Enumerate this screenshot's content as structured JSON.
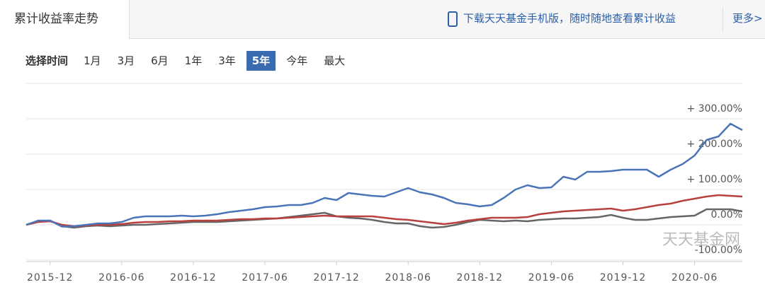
{
  "header": {
    "tab": "累计收益率走势",
    "download": "下载天天基金手机版，随时随地查看累计收益",
    "more": "更多>"
  },
  "selector": {
    "label": "选择时间",
    "options": [
      "1月",
      "3月",
      "6月",
      "1年",
      "3年",
      "5年",
      "今年",
      "最大"
    ],
    "selected": "5年"
  },
  "watermark": "天天基金网",
  "chart_data": {
    "type": "line",
    "x": [
      "2015-10",
      "2015-11",
      "2015-12",
      "2016-01",
      "2016-02",
      "2016-03",
      "2016-04",
      "2016-05",
      "2016-06",
      "2016-07",
      "2016-08",
      "2016-09",
      "2016-10",
      "2016-11",
      "2016-12",
      "2017-01",
      "2017-02",
      "2017-03",
      "2017-04",
      "2017-05",
      "2017-06",
      "2017-07",
      "2017-08",
      "2017-09",
      "2017-10",
      "2017-11",
      "2017-12",
      "2018-01",
      "2018-02",
      "2018-03",
      "2018-04",
      "2018-05",
      "2018-06",
      "2018-07",
      "2018-08",
      "2018-09",
      "2018-10",
      "2018-11",
      "2018-12",
      "2019-01",
      "2019-02",
      "2019-03",
      "2019-04",
      "2019-05",
      "2019-06",
      "2019-07",
      "2019-08",
      "2019-09",
      "2019-10",
      "2019-11",
      "2019-12",
      "2020-01",
      "2020-02",
      "2020-03",
      "2020-04",
      "2020-05",
      "2020-06",
      "2020-07",
      "2020-08",
      "2020-09",
      "2020-10"
    ],
    "xticks": [
      "2015-12",
      "2016-06",
      "2016-12",
      "2017-06",
      "2017-12",
      "2018-06",
      "2018-12",
      "2019-06",
      "2019-12",
      "2020-06"
    ],
    "series": [
      {
        "color": "#4a74b8",
        "values": [
          0,
          12,
          12,
          -5,
          -4,
          0,
          4,
          4,
          8,
          20,
          24,
          24,
          24,
          26,
          24,
          26,
          30,
          36,
          40,
          44,
          50,
          52,
          56,
          56,
          62,
          76,
          70,
          90,
          86,
          82,
          80,
          92,
          104,
          92,
          86,
          76,
          62,
          58,
          52,
          56,
          76,
          100,
          112,
          104,
          106,
          136,
          128,
          150,
          150,
          152,
          156,
          156,
          156,
          136,
          156,
          172,
          196,
          240,
          250,
          286,
          268
        ]
      },
      {
        "color": "#b8413e",
        "values": [
          0,
          8,
          10,
          0,
          -4,
          -2,
          0,
          0,
          2,
          6,
          8,
          8,
          10,
          10,
          12,
          12,
          12,
          14,
          16,
          16,
          18,
          18,
          20,
          22,
          24,
          26,
          24,
          24,
          24,
          24,
          20,
          16,
          14,
          10,
          6,
          2,
          6,
          12,
          16,
          20,
          20,
          20,
          22,
          30,
          34,
          38,
          40,
          42,
          44,
          46,
          40,
          44,
          50,
          56,
          60,
          68,
          74,
          80,
          84,
          82,
          80
        ]
      },
      {
        "color": "#666666",
        "values": [
          0,
          10,
          12,
          -4,
          -8,
          -4,
          -2,
          -4,
          -2,
          0,
          0,
          2,
          4,
          6,
          8,
          8,
          8,
          10,
          12,
          14,
          16,
          18,
          22,
          26,
          30,
          34,
          24,
          20,
          18,
          14,
          8,
          4,
          4,
          -4,
          -8,
          -6,
          0,
          8,
          14,
          12,
          10,
          12,
          10,
          14,
          16,
          18,
          18,
          20,
          22,
          28,
          20,
          14,
          14,
          18,
          22,
          24,
          26,
          44,
          44,
          44,
          38
        ]
      }
    ],
    "ylim": [
      -100,
      400
    ],
    "yticks": [
      {
        "value": 300,
        "label": "+ 300.00%"
      },
      {
        "value": 200,
        "label": "+ 200.00%"
      },
      {
        "value": 100,
        "label": "+ 100.00%"
      },
      {
        "value": 0,
        "label": "0.00%"
      },
      {
        "value": -100,
        "label": "-100.00%"
      }
    ],
    "grid": true
  }
}
